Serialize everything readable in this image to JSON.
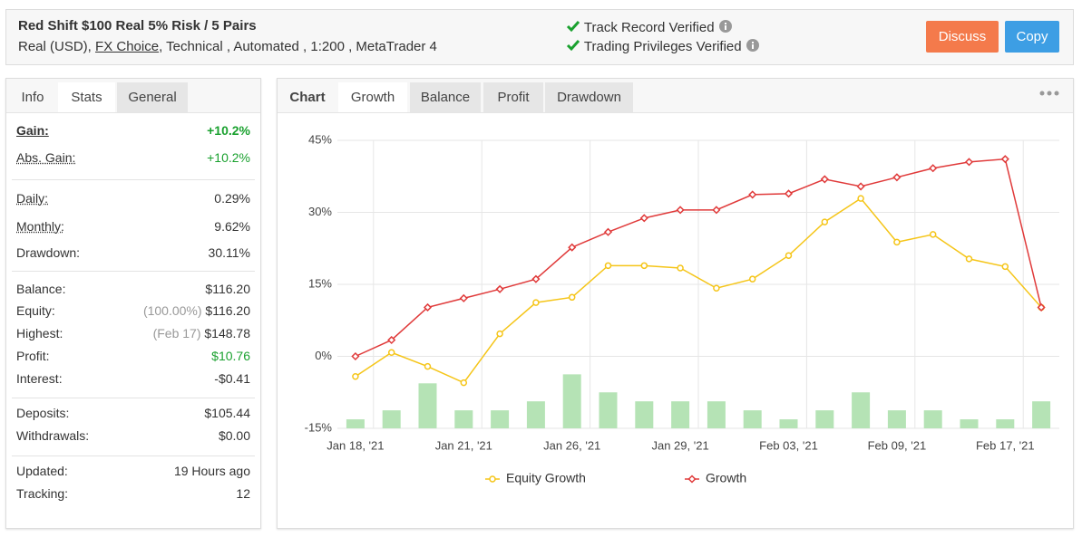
{
  "header": {
    "title": "Red Shift $100 Real 5% Risk / 5 Pairs",
    "subtitle": {
      "account": "Real (USD),",
      "broker": "FX Choice",
      "details": ", Technical , Automated , 1:200 , MetaTrader 4"
    },
    "verified": [
      "Track Record Verified",
      "Trading Privileges Verified"
    ],
    "buttons": [
      "Discuss",
      "Copy"
    ]
  },
  "left_tabs": [
    "Info",
    "Stats",
    "General"
  ],
  "stats": [
    [
      {
        "label": "Gain:",
        "value": "+10.2%",
        "color": "#1aa12f"
      },
      {
        "label": "Abs. Gain:",
        "value": "+10.2%",
        "color": "#1aa12f"
      }
    ],
    [
      {
        "label": "Daily:",
        "value": "0.29%"
      },
      {
        "label": "Monthly:",
        "value": "9.62%"
      },
      {
        "label": "Drawdown:",
        "value": "30.11%"
      }
    ],
    [
      {
        "label": "Balance:",
        "value": "$116.20"
      },
      {
        "label": "Equity:",
        "note": "(100.00%)",
        "value": "$116.20"
      },
      {
        "label": "Highest:",
        "note": "(Feb 17)",
        "value": "$148.78"
      },
      {
        "label": "Profit:",
        "value": "$10.76",
        "color": "#1aa12f"
      },
      {
        "label": "Interest:",
        "value": "-$0.41"
      }
    ],
    [
      {
        "label": "Deposits:",
        "value": "$105.44"
      },
      {
        "label": "Withdrawals:",
        "value": "$0.00"
      }
    ],
    [
      {
        "label": "Updated:",
        "value": "19 Hours ago"
      },
      {
        "label": "Tracking:",
        "value": "12"
      }
    ]
  ],
  "chart_tabs": [
    "Chart",
    "Growth",
    "Balance",
    "Profit",
    "Drawdown"
  ],
  "chart_data": {
    "type": "line",
    "categories": [
      "Jan 18, '21",
      null,
      null,
      "Jan 21, '21",
      null,
      null,
      "Jan 26, '21",
      null,
      null,
      "Jan 29, '21",
      null,
      null,
      "Feb 03, '21",
      null,
      null,
      "Feb 09, '21",
      null,
      null,
      "Feb 17, '21",
      null
    ],
    "series": [
      {
        "name": "Equity Growth",
        "color": "#f5c518",
        "marker": "circle",
        "values": [
          -4.2,
          0.8,
          -2.1,
          -5.5,
          4.7,
          11.2,
          12.3,
          18.9,
          18.9,
          18.4,
          14.2,
          16.1,
          21.0,
          28.0,
          32.9,
          23.8,
          25.4,
          20.3,
          18.7,
          10.2
        ]
      },
      {
        "name": "Growth",
        "color": "#e03a3a",
        "marker": "diamond",
        "values": [
          0,
          3.4,
          10.2,
          12.1,
          14.0,
          16.1,
          22.7,
          25.9,
          28.8,
          30.5,
          30.5,
          33.7,
          33.9,
          36.9,
          35.4,
          37.3,
          39.2,
          40.5,
          41.1,
          10.2
        ]
      }
    ],
    "bars": {
      "color": "#b5e3b5",
      "axis": "y2",
      "values": [
        1,
        2,
        5,
        2,
        2,
        3,
        6,
        4,
        3,
        3,
        3,
        2,
        1,
        2,
        4,
        2,
        2,
        1,
        1,
        3
      ]
    },
    "ylim": [
      -15,
      45
    ],
    "yticks": [
      {
        "value": -15,
        "label": "-15%"
      },
      {
        "value": 0,
        "label": "0%"
      },
      {
        "value": 15,
        "label": "15%"
      },
      {
        "value": 30,
        "label": "30%"
      },
      {
        "value": 45,
        "label": "45%"
      }
    ],
    "y2lim": [
      0,
      32
    ],
    "grid": true
  }
}
